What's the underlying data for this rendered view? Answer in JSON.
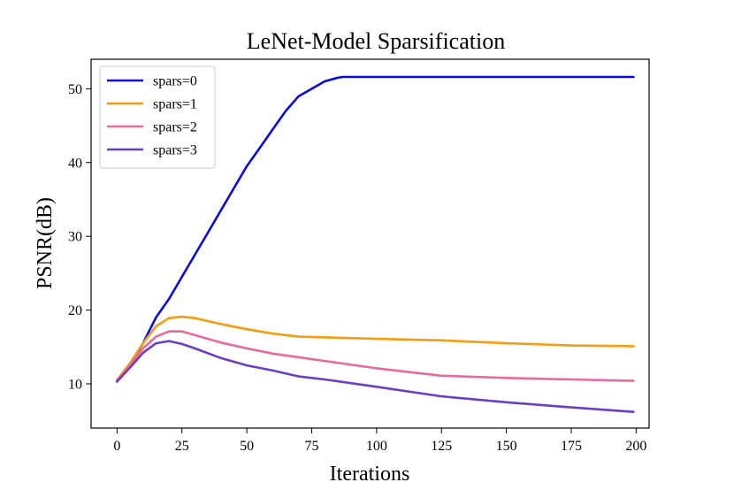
{
  "chart_data": {
    "type": "line",
    "title": "LeNet-Model Sparsification",
    "xlabel": "Iterations",
    "ylabel": "PSNR(dB)",
    "xlim": [
      -10,
      205
    ],
    "ylim": [
      4,
      54
    ],
    "xticks": [
      0,
      25,
      50,
      75,
      100,
      125,
      150,
      175,
      200
    ],
    "yticks": [
      10,
      20,
      30,
      40,
      50
    ],
    "grid": false,
    "legend_position": "upper-left",
    "series": [
      {
        "name": "spars=0",
        "color": "#0a0ae6",
        "x": [
          0,
          5,
          10,
          15,
          20,
          25,
          30,
          35,
          40,
          45,
          50,
          55,
          60,
          65,
          70,
          75,
          80,
          85,
          87,
          100,
          125,
          150,
          175,
          199
        ],
        "y": [
          10.5,
          12.5,
          15.5,
          19.0,
          21.5,
          24.5,
          27.5,
          30.5,
          33.5,
          36.5,
          39.5,
          42.0,
          44.5,
          47.0,
          49.0,
          50.0,
          51.0,
          51.5,
          51.6,
          51.6,
          51.6,
          51.6,
          51.6,
          51.6
        ]
      },
      {
        "name": "spars=1",
        "color": "#f59c0f",
        "x": [
          0,
          5,
          10,
          15,
          20,
          25,
          30,
          40,
          50,
          60,
          70,
          80,
          100,
          125,
          150,
          175,
          199
        ],
        "y": [
          10.5,
          12.8,
          15.5,
          17.8,
          18.9,
          19.1,
          18.9,
          18.1,
          17.4,
          16.8,
          16.4,
          16.3,
          16.1,
          15.9,
          15.5,
          15.2,
          15.1
        ]
      },
      {
        "name": "spars=2",
        "color": "#e96a9b",
        "x": [
          0,
          5,
          10,
          15,
          20,
          25,
          30,
          40,
          50,
          60,
          70,
          80,
          100,
          125,
          150,
          175,
          199
        ],
        "y": [
          10.4,
          12.5,
          14.8,
          16.4,
          17.1,
          17.1,
          16.6,
          15.6,
          14.8,
          14.1,
          13.6,
          13.1,
          12.1,
          11.1,
          10.8,
          10.6,
          10.4
        ]
      },
      {
        "name": "spars=3",
        "color": "#6a3fc7",
        "x": [
          0,
          5,
          10,
          15,
          20,
          25,
          30,
          40,
          50,
          60,
          70,
          80,
          100,
          125,
          150,
          175,
          199
        ],
        "y": [
          10.3,
          12.2,
          14.2,
          15.5,
          15.8,
          15.4,
          14.8,
          13.5,
          12.5,
          11.8,
          11.0,
          10.6,
          9.6,
          8.3,
          7.5,
          6.8,
          6.2
        ]
      }
    ]
  }
}
